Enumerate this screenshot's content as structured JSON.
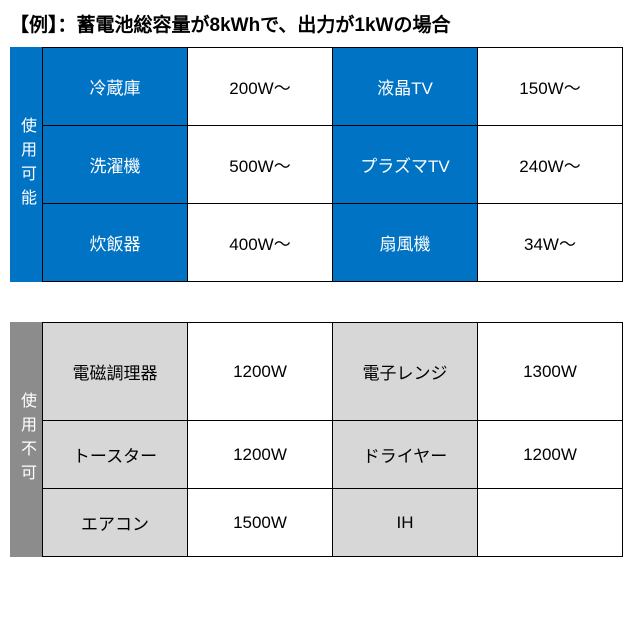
{
  "title": "【例】：蓄電池総容量が8kWhで、出力が1kWの場合",
  "usable": {
    "side_label": "使用可能",
    "side_bg": "#0073c4",
    "name_bg": "#0073c4",
    "name_fg": "#ffffff",
    "val_bg": "#ffffff",
    "val_fg": "#000000",
    "rows": [
      {
        "left_name": "冷蔵庫",
        "left_val": "200W～",
        "right_name": "液晶TV",
        "right_val": "150W～"
      },
      {
        "left_name": "洗濯機",
        "left_val": "500W～",
        "right_name": "プラズマTV",
        "right_val": "240W～"
      },
      {
        "left_name": "炊飯器",
        "left_val": "400W～",
        "right_name": "扇風機",
        "right_val": "34W～"
      }
    ]
  },
  "unusable": {
    "side_label": "使用不可",
    "side_bg": "#8c8c8c",
    "name_bg": "#d7d7d7",
    "name_fg": "#000000",
    "val_bg": "#ffffff",
    "val_fg": "#000000",
    "rows": [
      {
        "left_name": "電磁調理器",
        "left_val": "1200W",
        "right_name": "電子レンジ",
        "right_val": "1300W"
      },
      {
        "left_name": "トースター",
        "left_val": "1200W",
        "right_name": "ドライヤー",
        "right_val": "1200W"
      },
      {
        "left_name": "エアコン",
        "left_val": "1500W",
        "right_name": "IH",
        "right_val": ""
      }
    ]
  }
}
